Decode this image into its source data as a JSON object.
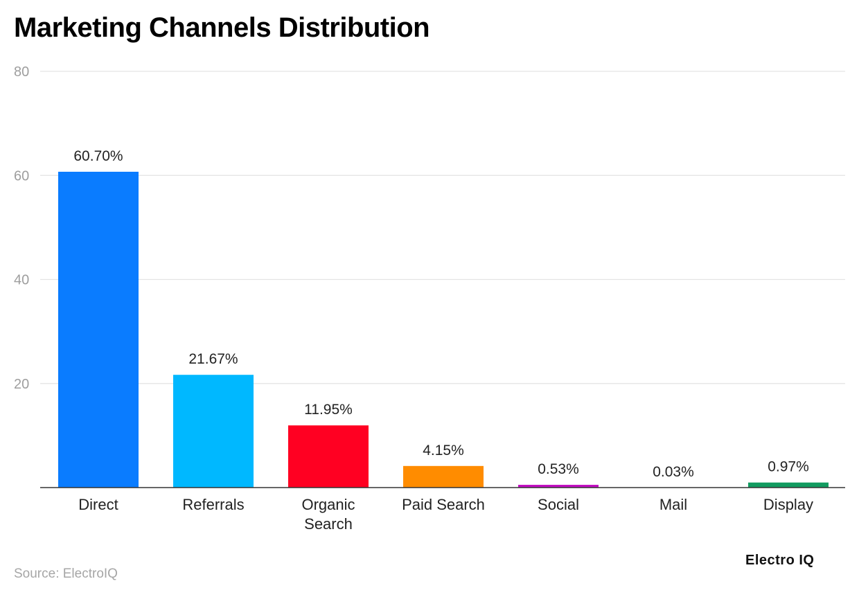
{
  "source": "Source: ElectroIQ",
  "brand": "Electro IQ",
  "chart_data": {
    "type": "bar",
    "title": "Marketing Channels Distribution",
    "xlabel": "",
    "ylabel": "",
    "ylim": [
      0,
      80
    ],
    "yticks": [
      20,
      40,
      60,
      80
    ],
    "grid": true,
    "categories": [
      [
        "Direct"
      ],
      [
        "Referrals"
      ],
      [
        "Organic",
        "Search"
      ],
      [
        "Paid Search"
      ],
      [
        "Social"
      ],
      [
        "Mail"
      ],
      [
        "Display"
      ]
    ],
    "values": [
      60.7,
      21.67,
      11.95,
      4.15,
      0.53,
      0.03,
      0.97
    ],
    "value_labels": [
      "60.70%",
      "21.67%",
      "11.95%",
      "4.15%",
      "0.53%",
      "0.03%",
      "0.97%"
    ],
    "colors": [
      "#0a7cff",
      "#00b8ff",
      "#ff0022",
      "#ff8c00",
      "#c20fc0",
      "#ffd200",
      "#129b60"
    ]
  }
}
